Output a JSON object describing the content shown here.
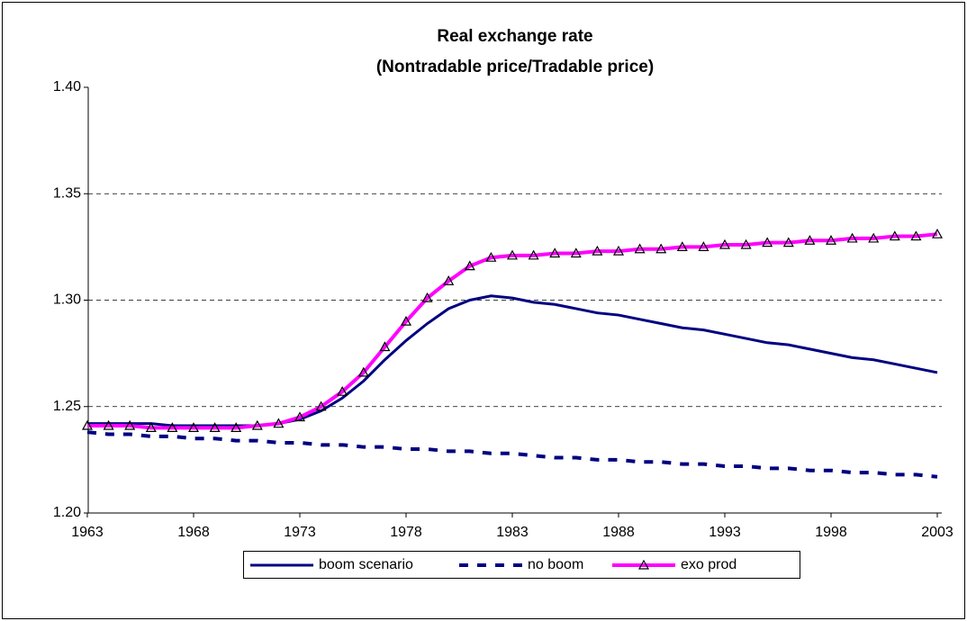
{
  "chart_data": {
    "type": "line",
    "title": "Real exchange rate",
    "subtitle": "(Nontradable price/Tradable price)",
    "x": [
      1963,
      1964,
      1965,
      1966,
      1967,
      1968,
      1969,
      1970,
      1971,
      1972,
      1973,
      1974,
      1975,
      1976,
      1977,
      1978,
      1979,
      1980,
      1981,
      1982,
      1983,
      1984,
      1985,
      1986,
      1987,
      1988,
      1989,
      1990,
      1991,
      1992,
      1993,
      1994,
      1995,
      1996,
      1997,
      1998,
      1999,
      2000,
      2001,
      2002,
      2003
    ],
    "xlim": [
      1963,
      2003
    ],
    "xticks": [
      1963,
      1968,
      1973,
      1978,
      1983,
      1988,
      1993,
      1998,
      2003
    ],
    "ylim": [
      1.2,
      1.4
    ],
    "yticks": [
      {
        "value": 1.2,
        "label": "1.20"
      },
      {
        "value": 1.25,
        "label": "1.25"
      },
      {
        "value": 1.3,
        "label": "1.30"
      },
      {
        "value": 1.35,
        "label": "1.35"
      },
      {
        "value": 1.4,
        "label": "1.40"
      }
    ],
    "grid": true,
    "legend": "bottom",
    "series": [
      {
        "name": "boom scenario",
        "color": "#000080",
        "style": "solid",
        "values": [
          1.242,
          1.242,
          1.242,
          1.242,
          1.241,
          1.241,
          1.241,
          1.241,
          1.241,
          1.242,
          1.244,
          1.248,
          1.254,
          1.262,
          1.272,
          1.281,
          1.289,
          1.296,
          1.3,
          1.302,
          1.301,
          1.299,
          1.298,
          1.296,
          1.294,
          1.293,
          1.291,
          1.289,
          1.287,
          1.286,
          1.284,
          1.282,
          1.28,
          1.279,
          1.277,
          1.275,
          1.273,
          1.272,
          1.27,
          1.268,
          1.266
        ]
      },
      {
        "name": "no boom",
        "color": "#000080",
        "style": "dashed",
        "values": [
          1.238,
          1.237,
          1.237,
          1.236,
          1.236,
          1.235,
          1.235,
          1.234,
          1.234,
          1.233,
          1.233,
          1.232,
          1.232,
          1.231,
          1.231,
          1.23,
          1.23,
          1.229,
          1.229,
          1.228,
          1.228,
          1.227,
          1.226,
          1.226,
          1.225,
          1.225,
          1.224,
          1.224,
          1.223,
          1.223,
          1.222,
          1.222,
          1.221,
          1.221,
          1.22,
          1.22,
          1.219,
          1.219,
          1.218,
          1.218,
          1.217
        ]
      },
      {
        "name": "exo prod",
        "color": "#ff00ff",
        "style": "solid",
        "marker": "triangle",
        "values": [
          1.241,
          1.241,
          1.241,
          1.24,
          1.24,
          1.24,
          1.24,
          1.24,
          1.241,
          1.242,
          1.245,
          1.25,
          1.257,
          1.266,
          1.278,
          1.29,
          1.301,
          1.309,
          1.316,
          1.32,
          1.321,
          1.321,
          1.322,
          1.322,
          1.323,
          1.323,
          1.324,
          1.324,
          1.325,
          1.325,
          1.326,
          1.326,
          1.327,
          1.327,
          1.328,
          1.328,
          1.329,
          1.329,
          1.33,
          1.33,
          1.331
        ]
      }
    ]
  }
}
